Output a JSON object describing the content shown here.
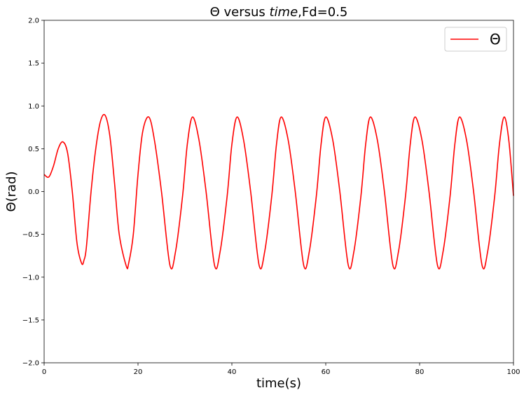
{
  "chart_data": {
    "type": "line",
    "title": {
      "prefix": "Θ versus ",
      "italic": "time",
      "suffix": ",Fd=0.5"
    },
    "xlabel": "time(s)",
    "ylabel": "Θ(rad)",
    "xlim": [
      0,
      100
    ],
    "ylim": [
      -2.0,
      2.0
    ],
    "xticks": [
      0,
      20,
      40,
      60,
      80,
      100
    ],
    "xtick_labels": [
      "0",
      "20",
      "40",
      "60",
      "80",
      "100"
    ],
    "yticks": [
      -2.0,
      -1.5,
      -1.0,
      -0.5,
      0.0,
      0.5,
      1.0,
      1.5,
      2.0
    ],
    "ytick_labels": [
      "−2.0",
      "−1.5",
      "−1.0",
      "−0.5",
      "0.0",
      "0.5",
      "1.0",
      "1.5",
      "2.0"
    ],
    "grid": false,
    "legend_position": "top-right",
    "series": [
      {
        "name": "Θ",
        "color": "#ff0000",
        "x": [
          0,
          1,
          2,
          3,
          4,
          5,
          6,
          7,
          8,
          8.5,
          9,
          10,
          11,
          12,
          13,
          14,
          15,
          16,
          17.5,
          18,
          19,
          20,
          21,
          22.3,
          23.5,
          25,
          26.8,
          28,
          29.5,
          30.5,
          31.6,
          33,
          34.5,
          36.3,
          37.5,
          39,
          40,
          41.1,
          42.5,
          44,
          45.8,
          47,
          48.5,
          49.5,
          50.5,
          52,
          53.5,
          55.3,
          56.5,
          58,
          59,
          60,
          61.5,
          63,
          64.8,
          66,
          67.5,
          68.5,
          69.5,
          71,
          72.5,
          74.3,
          75.5,
          77,
          78,
          79,
          80.5,
          82,
          83.8,
          85,
          86.5,
          87.5,
          88.5,
          90,
          91.5,
          93.3,
          94.5,
          96,
          97,
          98,
          99,
          100
        ],
        "values": [
          0.2,
          0.17,
          0.3,
          0.5,
          0.58,
          0.45,
          0.0,
          -0.6,
          -0.84,
          -0.8,
          -0.65,
          0.0,
          0.5,
          0.82,
          0.89,
          0.65,
          0.1,
          -0.5,
          -0.87,
          -0.84,
          -0.5,
          0.2,
          0.7,
          0.87,
          0.6,
          0.0,
          -0.86,
          -0.7,
          -0.05,
          0.55,
          0.87,
          0.6,
          0.0,
          -0.86,
          -0.7,
          -0.05,
          0.55,
          0.87,
          0.6,
          0.0,
          -0.86,
          -0.7,
          -0.05,
          0.55,
          0.87,
          0.6,
          0.0,
          -0.86,
          -0.7,
          -0.05,
          0.55,
          0.87,
          0.6,
          0.0,
          -0.86,
          -0.7,
          -0.05,
          0.55,
          0.87,
          0.6,
          0.0,
          -0.86,
          -0.7,
          -0.05,
          0.55,
          0.87,
          0.6,
          0.0,
          -0.86,
          -0.7,
          -0.05,
          0.55,
          0.87,
          0.6,
          0.0,
          -0.86,
          -0.7,
          -0.05,
          0.55,
          0.87,
          0.6,
          -0.05
        ]
      }
    ]
  }
}
